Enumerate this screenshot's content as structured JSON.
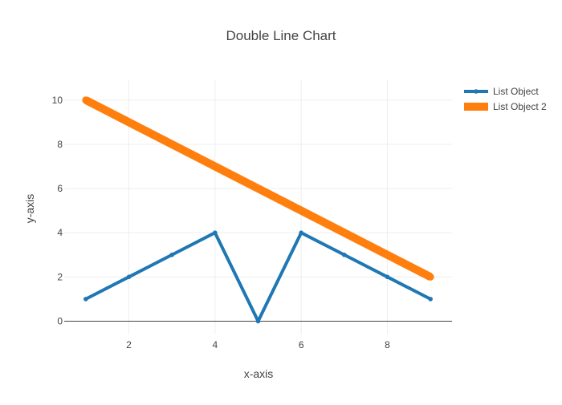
{
  "chart_data": {
    "type": "line",
    "title": "Double Line Chart",
    "xlabel": "x-axis",
    "ylabel": "y-axis",
    "xlim": [
      0.5,
      9.5
    ],
    "ylim": [
      -0.6,
      10.9
    ],
    "x_ticks": [
      2,
      4,
      6,
      8
    ],
    "y_ticks": [
      0,
      2,
      4,
      6,
      8,
      10
    ],
    "grid": true,
    "legend_position": "top-right",
    "series": [
      {
        "name": "List Object",
        "color": "#1f77b4",
        "x": [
          1,
          2,
          3,
          4,
          5,
          6,
          7,
          8,
          9
        ],
        "y": [
          1,
          2,
          3,
          4,
          0,
          4,
          3,
          2,
          1
        ]
      },
      {
        "name": "List Object 2",
        "color": "#ff7f0e",
        "x": [
          1,
          2,
          3,
          4,
          5,
          6,
          7,
          8,
          9
        ],
        "y": [
          10,
          9,
          8,
          7,
          6,
          5,
          4,
          3,
          2
        ]
      }
    ]
  }
}
